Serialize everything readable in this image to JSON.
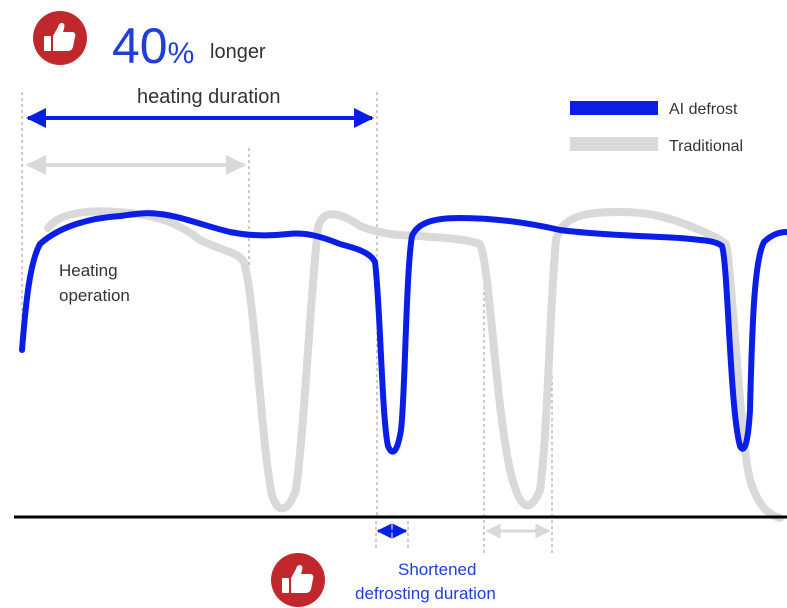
{
  "headline": {
    "percent_number": "40",
    "percent_sign": "%",
    "suffix": "longer",
    "line2": "heating duration"
  },
  "legend": [
    {
      "label": "AI defrost",
      "color": "#0a1ee6"
    },
    {
      "label": "Traditional",
      "color": "#d9d9d9"
    }
  ],
  "annotations": {
    "heating_operation_line1": "Heating",
    "heating_operation_line2": "operation",
    "shortened_line1": "Shortened",
    "shortened_line2": "defrosting duration"
  },
  "colors": {
    "ai": "#0a1ee6",
    "traditional": "#d9d9d9",
    "badge": "#c0282d",
    "headline_text": "#1f3fd6",
    "annotation_text": "#333333",
    "baseline": "#000000"
  },
  "icons": {
    "badge_top": "thumbs-up-icon",
    "badge_bottom": "thumbs-up-icon"
  }
}
